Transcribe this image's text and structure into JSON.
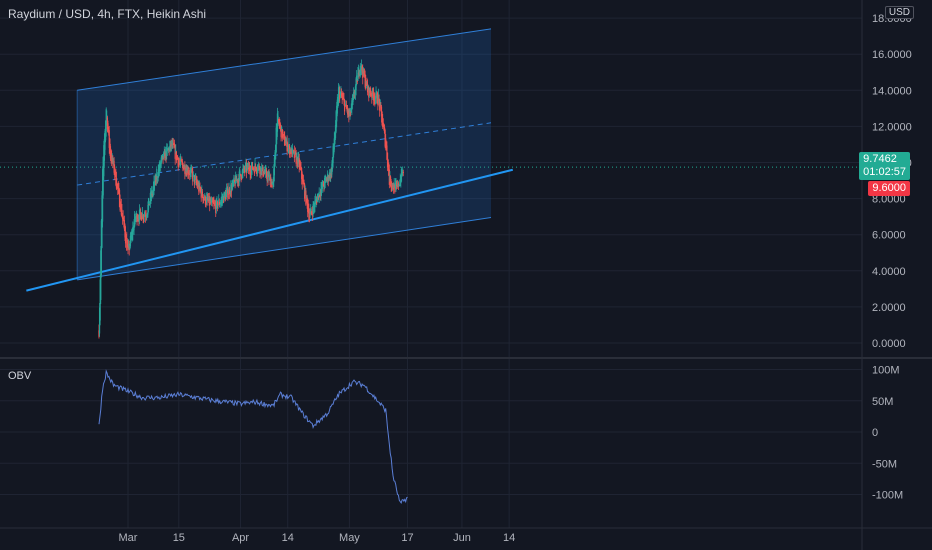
{
  "header": {
    "title": "Raydium / USD, 4h, FTX, Heikin Ashi"
  },
  "currency": "USD",
  "last_price": {
    "value": "9.7462",
    "countdown": "01:02:57"
  },
  "level_price": "9.6000",
  "colors": {
    "bg": "#131722",
    "up": "#26a69a",
    "down": "#ef5350",
    "channel": "#2962ff",
    "trend": "#2196f3",
    "obv": "#5b7fd6"
  },
  "chart_data": [
    {
      "type": "candlestick",
      "title": "Raydium / USD, 4h, FTX, Heikin Ashi",
      "ylim": [
        0,
        18
      ],
      "y_ticks": [
        "18.0000",
        "16.0000",
        "14.0000",
        "12.0000",
        "10.0000",
        "8.0000",
        "6.0000",
        "4.0000",
        "2.0000",
        "0.0000"
      ],
      "x_ticks": [
        "Mar",
        "15",
        "Apr",
        "14",
        "May",
        "17",
        "Jun",
        "14"
      ],
      "grid": true,
      "price_path": [
        {
          "x": "Feb 21",
          "close": 0.7
        },
        {
          "x": "Feb 22",
          "close": 9.5
        },
        {
          "x": "Feb 23",
          "close": 13.0
        },
        {
          "x": "Feb 24",
          "close": 10.5
        },
        {
          "x": "Feb 25",
          "close": 9.8
        },
        {
          "x": "Feb 27",
          "close": 7.5
        },
        {
          "x": "Mar 1",
          "close": 5.0
        },
        {
          "x": "Mar 3",
          "close": 7.0
        },
        {
          "x": "Mar 6",
          "close": 7.2
        },
        {
          "x": "Mar 10",
          "close": 10.0
        },
        {
          "x": "Mar 13",
          "close": 11.0
        },
        {
          "x": "Mar 15",
          "close": 10.0
        },
        {
          "x": "Mar 18",
          "close": 9.5
        },
        {
          "x": "Mar 22",
          "close": 8.0
        },
        {
          "x": "Mar 25",
          "close": 7.5
        },
        {
          "x": "Mar 29",
          "close": 8.5
        },
        {
          "x": "Apr 2",
          "close": 9.6
        },
        {
          "x": "Apr 6",
          "close": 9.8
        },
        {
          "x": "Apr 10",
          "close": 8.8
        },
        {
          "x": "Apr 11",
          "close": 12.5
        },
        {
          "x": "Apr 13",
          "close": 11.2
        },
        {
          "x": "Apr 17",
          "close": 10.0
        },
        {
          "x": "Apr 20",
          "close": 7.0
        },
        {
          "x": "Apr 23",
          "close": 8.5
        },
        {
          "x": "Apr 26",
          "close": 9.5
        },
        {
          "x": "Apr 28",
          "close": 14.0
        },
        {
          "x": "May 1",
          "close": 12.5
        },
        {
          "x": "May 4",
          "close": 15.5
        },
        {
          "x": "May 6",
          "close": 14.0
        },
        {
          "x": "May 9",
          "close": 13.5
        },
        {
          "x": "May 11",
          "close": 11.0
        },
        {
          "x": "May 12",
          "close": 9.0
        },
        {
          "x": "May 14",
          "close": 8.5
        },
        {
          "x": "May 16",
          "close": 9.7
        }
      ],
      "series": [
        {
          "type": "channel-upper",
          "points": [
            {
              "x": "Feb 15",
              "y": 14.0
            },
            {
              "x": "Jun 9",
              "y": 17.4
            }
          ]
        },
        {
          "type": "channel-mid",
          "points": [
            {
              "x": "Feb 15",
              "y": 8.75
            },
            {
              "x": "Jun 9",
              "y": 12.2
            }
          ]
        },
        {
          "type": "channel-lower",
          "points": [
            {
              "x": "Feb 15",
              "y": 3.5
            },
            {
              "x": "Jun 9",
              "y": 6.95
            }
          ]
        },
        {
          "type": "trend-line",
          "points": [
            {
              "x": "Feb 1",
              "y": 2.9
            },
            {
              "x": "Jun 15",
              "y": 9.6
            }
          ]
        }
      ]
    },
    {
      "type": "line",
      "indicator": "OBV",
      "ylim": [
        -125,
        110
      ],
      "y_ticks": [
        "100M",
        "50M",
        "0",
        "-50M",
        "-100M"
      ],
      "points": [
        {
          "x": "Feb 21",
          "y": 10
        },
        {
          "x": "Feb 22",
          "y": 70
        },
        {
          "x": "Feb 23",
          "y": 95
        },
        {
          "x": "Feb 25",
          "y": 75
        },
        {
          "x": "Mar 1",
          "y": 65
        },
        {
          "x": "Mar 5",
          "y": 55
        },
        {
          "x": "Mar 10",
          "y": 55
        },
        {
          "x": "Mar 15",
          "y": 60
        },
        {
          "x": "Mar 20",
          "y": 55
        },
        {
          "x": "Mar 25",
          "y": 50
        },
        {
          "x": "Apr 1",
          "y": 45
        },
        {
          "x": "Apr 5",
          "y": 48
        },
        {
          "x": "Apr 10",
          "y": 42
        },
        {
          "x": "Apr 12",
          "y": 60
        },
        {
          "x": "Apr 15",
          "y": 55
        },
        {
          "x": "Apr 18",
          "y": 30
        },
        {
          "x": "Apr 21",
          "y": 10
        },
        {
          "x": "Apr 25",
          "y": 30
        },
        {
          "x": "Apr 28",
          "y": 60
        },
        {
          "x": "May 2",
          "y": 80
        },
        {
          "x": "May 5",
          "y": 75
        },
        {
          "x": "May 8",
          "y": 55
        },
        {
          "x": "May 11",
          "y": 35
        },
        {
          "x": "May 12",
          "y": -20
        },
        {
          "x": "May 13",
          "y": -70
        },
        {
          "x": "May 15",
          "y": -115
        },
        {
          "x": "May 17",
          "y": -105
        }
      ]
    }
  ]
}
